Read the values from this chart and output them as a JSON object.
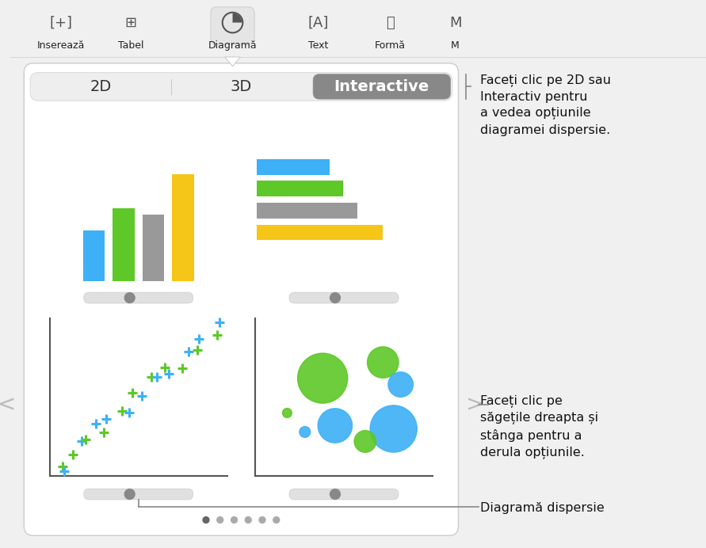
{
  "bg_color": "#f0f0f0",
  "toolbar_bg": "#f0f0f0",
  "dialog_bg": "#ffffff",
  "tab_labels": [
    "2D",
    "3D",
    "Interactive"
  ],
  "tab_active": 2,
  "tab_active_color": "#888888",
  "tab_inactive_color": "#f5f5f5",
  "annotation1": "Faceți clic pe 2D sau\nInteractiv pentru\na vedea opțiunile\ndiagramei dispersie.",
  "annotation2": "Faceți clic pe\nsăgețile dreapta și\nstânga pentru a\nderula opțiunile.",
  "annotation3": "Diagramă dispersie",
  "bar_chart_colors": [
    "#3db0f7",
    "#5dc827",
    "#999999",
    "#f5c518"
  ],
  "horiz_bar_colors_top_to_bottom": [
    "#3db0f7",
    "#5dc827",
    "#999999",
    "#f5c518"
  ],
  "scatter_green": "#5dc827",
  "scatter_blue": "#3db0f7",
  "bubble_green": "#5dc827",
  "bubble_blue": "#3db0f7",
  "slider_color": "#e0e0e0",
  "slider_thumb": "#888888",
  "dot_color": "#aaaaaa",
  "dot_active": "#666666",
  "nav_arrow_color": "#bbbbbb",
  "callout_line_color": "#999999",
  "toolbar_labels": [
    "Inserează",
    "Tabel",
    "Diagramă",
    "Text",
    "Formă",
    "M"
  ],
  "toolbar_x": [
    65,
    155,
    285,
    395,
    487,
    570
  ],
  "n_dots": 6
}
